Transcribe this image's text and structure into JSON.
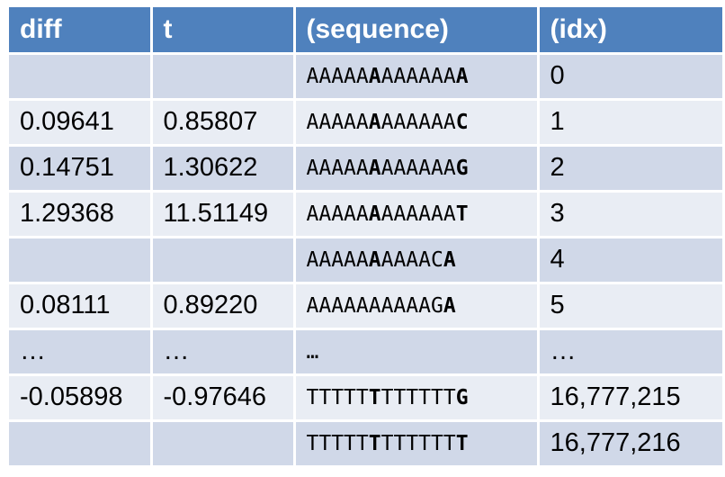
{
  "table": {
    "headers": [
      "diff",
      "t",
      "(sequence)",
      "(idx)"
    ],
    "rows": [
      {
        "diff": "",
        "t": "",
        "seq": {
          "pre": "AAAAA",
          "mid": "A",
          "post": "AAAAAA",
          "last": "A"
        },
        "idx": "0"
      },
      {
        "diff": "0.09641",
        "t": "0.85807",
        "seq": {
          "pre": "AAAAA",
          "mid": "A",
          "post": "AAAAAA",
          "last": "C"
        },
        "idx": "1"
      },
      {
        "diff": "0.14751",
        "t": "1.30622",
        "seq": {
          "pre": "AAAAA",
          "mid": "A",
          "post": "AAAAAA",
          "last": "G"
        },
        "idx": "2"
      },
      {
        "diff": "1.29368",
        "t": "11.51149",
        "seq": {
          "pre": "AAAAA",
          "mid": "A",
          "post": "AAAAAA",
          "last": "T"
        },
        "idx": "3"
      },
      {
        "diff": "",
        "t": "",
        "seq": {
          "pre": "AAAAA",
          "mid": "A",
          "post": "AAAAC",
          "last": "A"
        },
        "idx": "4"
      },
      {
        "diff": "0.08111",
        "t": "0.89220",
        "seq": {
          "pre": "AAAAAAAAAAG",
          "mid": "",
          "post": "",
          "last": "A"
        },
        "idx": "5"
      },
      {
        "diff": "…",
        "t": "…",
        "seq": {
          "pre": "…",
          "mid": "",
          "post": "",
          "last": ""
        },
        "idx": "…"
      },
      {
        "diff": "-0.05898",
        "t": "-0.97646",
        "seq": {
          "pre": "TTTTT",
          "mid": "T",
          "post": "TTTTTT",
          "last": "G"
        },
        "idx": "16,777,215"
      },
      {
        "diff": "",
        "t": "",
        "seq": {
          "pre": "TTTTT",
          "mid": "T",
          "post": "TTTTTT",
          "last": "T"
        },
        "idx": "16,777,216"
      }
    ]
  },
  "colors": {
    "header_bg": "#4f81bd",
    "row_odd": "#d0d8e8",
    "row_even": "#e9edf4"
  }
}
